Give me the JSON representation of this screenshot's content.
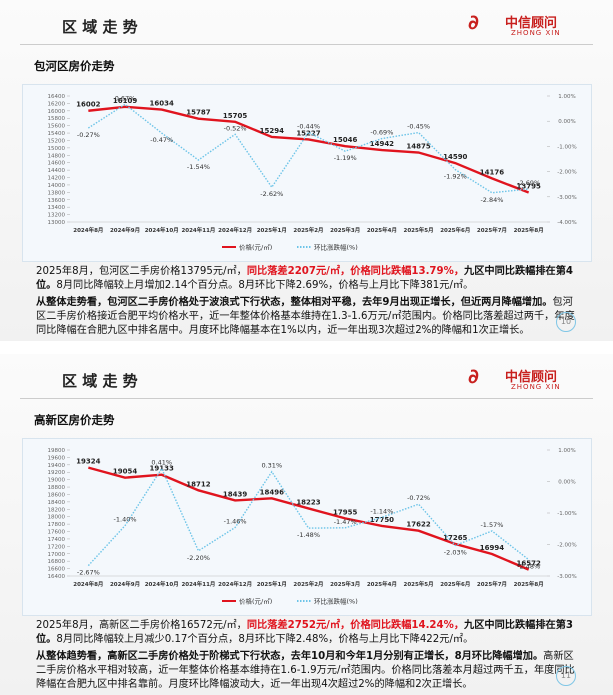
{
  "pages": [
    {
      "header": "区 域 走 势",
      "brand": "中信顾问",
      "brand_en": "ZHONG XIN",
      "page_number": "10",
      "paragraphs": [
        {
          "runs": [
            {
              "text": "2025年8月，包河区二手房价格13795元/㎡，",
              "style": "normal"
            },
            {
              "text": "同比落差2207元/㎡，价格同比跌幅13.79%，",
              "style": "red"
            },
            {
              "text": "九区中同比跌幅排在第4位。",
              "style": "bold"
            },
            {
              "text": "8月同比降幅较上月增加2.14个百分点。8月环比下降2.69%，价格与上月比下降381元/㎡。",
              "style": "normal"
            }
          ]
        },
        {
          "runs": [
            {
              "text": "从整体走势看，包河区二手房价格处于波浪式下行状态，整体相对平稳，去年9月出现正增长，但近两月降幅增加。",
              "style": "bold"
            },
            {
              "text": "包河区二手房价格接近合肥平均价格水平，近一年整体价格基本维持在1.3-1.6万元/㎡范围内。价格同比落差超过两千，年度同比降幅在合肥九区中排名居中。月度环比降幅基本在1%以内，近一年出现3次超过2%的降幅和1次正增长。",
              "style": "normal"
            }
          ]
        }
      ]
    },
    {
      "header": "区 域 走 势",
      "brand": "中信顾问",
      "brand_en": "ZHONG XIN",
      "page_number": "11",
      "paragraphs": [
        {
          "runs": [
            {
              "text": "2025年8月，高新区二手房价格16572元/㎡，",
              "style": "normal"
            },
            {
              "text": "同比落差2752元/㎡，价格同比跌幅14.24%，",
              "style": "red"
            },
            {
              "text": "九区中同比跌幅排在第3位。",
              "style": "bold"
            },
            {
              "text": "8月同比降幅较上月减少0.17个百分点，8月环比下降2.48%，价格与上月比下降422元/㎡。",
              "style": "normal"
            }
          ]
        },
        {
          "runs": [
            {
              "text": "从整体趋势看，高新区二手房价格处于阶梯式下行状态，去年10月和今年1月分别有正增长，8月环比降幅增加。",
              "style": "bold"
            },
            {
              "text": "高新区二手房价格水平相对较高，近一年整体价格基本维持在1.6-1.9万元/㎡范围内。价格同比落差本月超过两千五，年度同比降幅在合肥九区中排名靠前。月度环比降幅波动大，近一年出现4次超过2%的降幅和2次正增长。",
              "style": "normal"
            }
          ]
        }
      ]
    }
  ],
  "chart_data": [
    {
      "type": "line",
      "title": "包河区房价走势",
      "categories": [
        "2024年8月",
        "2024年9月",
        "2024年10月",
        "2024年11月",
        "2024年12月",
        "2025年1月",
        "2025年2月",
        "2025年3月",
        "2025年4月",
        "2025年5月",
        "2025年6月",
        "2025年7月",
        "2025年8月"
      ],
      "series": [
        {
          "name": "价格(元/㎡)",
          "color": "#e0141e",
          "values": [
            16002,
            16109,
            16034,
            15787,
            15705,
            15294,
            15227,
            15046,
            14942,
            14875,
            14590,
            14176,
            13795
          ]
        },
        {
          "name": "环比涨跌幅(%)",
          "color": "#6cc4e8",
          "axis": "y2",
          "values": [
            -0.27,
            0.67,
            -0.47,
            -1.54,
            -0.52,
            -2.62,
            -0.44,
            -1.19,
            -0.69,
            -0.45,
            -1.92,
            -2.84,
            -2.69
          ],
          "value_labels": [
            "-0.27%",
            "0.67%",
            "-0.47%",
            "-1.54%",
            "-0.52%",
            "-2.62%",
            "-0.44%",
            "-1.19%",
            "-0.69%",
            "-0.45%",
            "-1.92%",
            "-2.84%",
            "-2.69%"
          ]
        }
      ],
      "ylim": [
        13000,
        16400
      ],
      "yticks": [
        13000,
        13200,
        13400,
        13600,
        13800,
        14000,
        14200,
        14400,
        14600,
        14800,
        15000,
        15200,
        15400,
        15600,
        15800,
        16000,
        16200,
        16400
      ],
      "y2lim": [
        -4,
        1
      ],
      "y2ticks": [
        {
          "value": -4,
          "label": "-4.00%"
        },
        {
          "value": -3,
          "label": "-3.00%"
        },
        {
          "value": -2,
          "label": "-2.00%"
        },
        {
          "value": -1,
          "label": "-1.00%"
        },
        {
          "value": 0,
          "label": "0.00%"
        },
        {
          "value": 1,
          "label": "1.00%"
        }
      ]
    },
    {
      "type": "line",
      "title": "高新区房价走势",
      "categories": [
        "2024年8月",
        "2024年9月",
        "2024年10月",
        "2024年11月",
        "2024年12月",
        "2025年1月",
        "2025年2月",
        "2025年3月",
        "2025年4月",
        "2025年5月",
        "2025年6月",
        "2025年7月",
        "2025年8月"
      ],
      "series": [
        {
          "name": "价格(元/㎡)",
          "color": "#e0141e",
          "values": [
            19324,
            19054,
            19133,
            18712,
            18439,
            18496,
            18223,
            17955,
            17750,
            17622,
            17265,
            16994,
            16572
          ]
        },
        {
          "name": "环比涨跌幅(%)",
          "color": "#6cc4e8",
          "axis": "y2",
          "values": [
            -2.67,
            -1.4,
            0.41,
            -2.2,
            -1.46,
            0.31,
            -1.48,
            -1.47,
            -1.14,
            -0.72,
            -2.03,
            -1.57,
            -2.48
          ],
          "value_labels": [
            "-2.67%",
            "-1.40%",
            "0.41%",
            "-2.20%",
            "-1.46%",
            "0.31%",
            "-1.48%",
            "-1.47%",
            "-1.14%",
            "-0.72%",
            "-2.03%",
            "-1.57%",
            "-2.48%"
          ]
        }
      ],
      "ylim": [
        16400,
        19800
      ],
      "yticks": [
        16400,
        16600,
        16800,
        17000,
        17200,
        17400,
        17600,
        17800,
        18000,
        18200,
        18400,
        18600,
        18800,
        19000,
        19200,
        19400,
        19600,
        19800
      ],
      "y2lim": [
        -3,
        1
      ],
      "y2ticks": [
        {
          "value": -3,
          "label": "-3.00%"
        },
        {
          "value": -2,
          "label": "-2.00%"
        },
        {
          "value": -1,
          "label": "-1.00%"
        },
        {
          "value": 0,
          "label": "0.00%"
        },
        {
          "value": 1,
          "label": "1.00%"
        }
      ]
    }
  ]
}
